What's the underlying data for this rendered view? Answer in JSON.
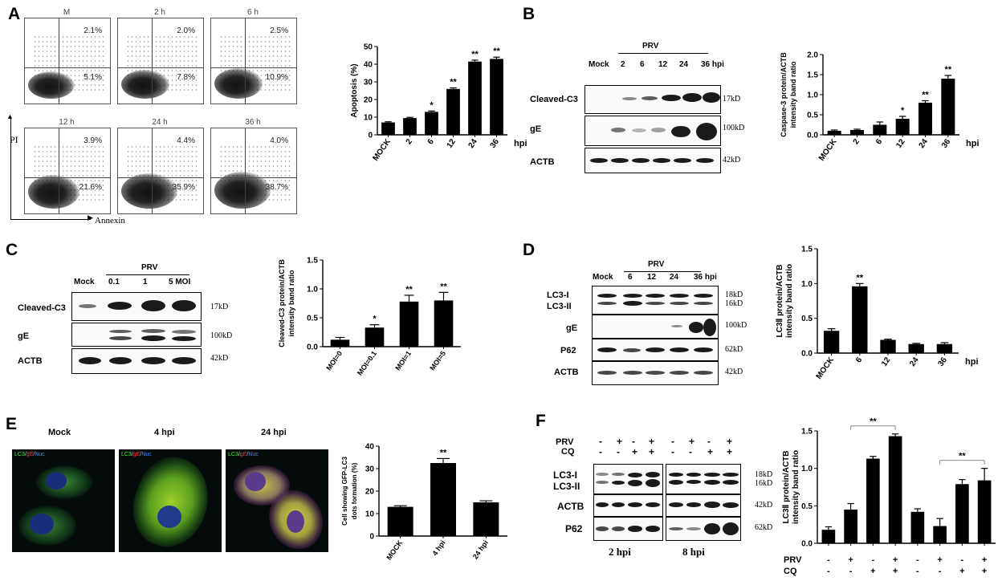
{
  "panels": {
    "A": {
      "letter": "A",
      "facs_plots": [
        {
          "title": "M",
          "upper_right": "2.1%",
          "lower_right": "5.1%"
        },
        {
          "title": "2 h",
          "upper_right": "2.0%",
          "lower_right": "7.8%"
        },
        {
          "title": "6 h",
          "upper_right": "2.5%",
          "lower_right": "10.9%"
        },
        {
          "title": "12 h",
          "upper_right": "3.9%",
          "lower_right": "21.6%"
        },
        {
          "title": "24 h",
          "upper_right": "4.4%",
          "lower_right": "35.9%"
        },
        {
          "title": "36 h",
          "upper_right": "4.0%",
          "lower_right": "38.7%"
        }
      ],
      "y_axis_label": "PI",
      "x_axis_label": "Annexin"
    },
    "B": {
      "letter": "B",
      "blot_header": "PRV",
      "lanes": [
        "Mock",
        "2",
        "6",
        "12",
        "24",
        "36 hpi"
      ],
      "rows": [
        "Cleaved-C3",
        "gE",
        "ACTB"
      ],
      "sizes": [
        "17kD",
        "100kD",
        "42kD"
      ]
    },
    "C": {
      "letter": "C",
      "blot_header": "PRV",
      "lanes": [
        "Mock",
        "0.1",
        "1",
        "5 MOI"
      ],
      "rows": [
        "Cleaved-C3",
        "gE",
        "ACTB"
      ],
      "sizes": [
        "17kD",
        "100kD",
        "42kD"
      ]
    },
    "D": {
      "letter": "D",
      "blot_header": "PRV",
      "lanes": [
        "Mock",
        "6",
        "12",
        "24",
        "36 hpi"
      ],
      "rows": [
        "LC3-I",
        "LC3-II",
        "gE",
        "P62",
        "ACTB"
      ],
      "sizes": [
        "18kD",
        "16kD",
        "100kD",
        "62kD",
        "42kD"
      ]
    },
    "E": {
      "letter": "E",
      "images": [
        "Mock",
        "4 hpi",
        "24 hpi"
      ],
      "legend": {
        "lc3": "LC3",
        "ge": "gE",
        "nuc": "Nuc"
      }
    },
    "F": {
      "letter": "F",
      "prv_label": "PRV",
      "cq_label": "CQ",
      "prv_signs": [
        "-",
        "+",
        "-",
        "+",
        "-",
        "+",
        "-",
        "+"
      ],
      "cq_signs": [
        "-",
        "-",
        "+",
        "+",
        "-",
        "-",
        "+",
        "+"
      ],
      "rows": [
        "LC3-I",
        "LC3-II",
        "ACTB",
        "P62"
      ],
      "sizes": [
        "18kD",
        "16kD",
        "42kD",
        "62kD"
      ],
      "time_labels": [
        "2 hpi",
        "8 hpi"
      ]
    }
  },
  "chart_data": [
    {
      "id": "A",
      "type": "bar",
      "categories": [
        "MOCK",
        "2",
        "6",
        "12",
        "24",
        "36"
      ],
      "values": [
        7,
        9.5,
        13,
        26,
        41.5,
        43
      ],
      "errors": [
        0.4,
        0.4,
        0.5,
        0.6,
        0.8,
        1.0
      ],
      "stars": [
        "",
        "",
        "*",
        "**",
        "**",
        "**"
      ],
      "ylabel": "Apoptosis (%)",
      "xunit": "hpi",
      "ylim": [
        0,
        50
      ],
      "yticks": [
        0,
        10,
        20,
        30,
        40,
        50
      ]
    },
    {
      "id": "B",
      "type": "bar",
      "categories": [
        "MOCK",
        "2",
        "6",
        "12",
        "24",
        "36"
      ],
      "values": [
        0.1,
        0.12,
        0.25,
        0.4,
        0.8,
        1.4
      ],
      "errors": [
        0.02,
        0.02,
        0.07,
        0.06,
        0.05,
        0.08
      ],
      "stars": [
        "",
        "",
        "",
        "*",
        "**",
        "**"
      ],
      "ylabel": "Caspase-3 protein/ACTB intensity band ratio",
      "xunit": "hpi",
      "ylim": [
        0,
        2.0
      ],
      "yticks": [
        0.0,
        0.5,
        1.0,
        1.5,
        2.0
      ]
    },
    {
      "id": "C",
      "type": "bar",
      "categories": [
        "MOI=0",
        "MOI=0.1",
        "MOI=1",
        "MOI=5"
      ],
      "values": [
        0.12,
        0.33,
        0.78,
        0.8
      ],
      "errors": [
        0.04,
        0.05,
        0.11,
        0.14
      ],
      "stars": [
        "",
        "*",
        "**",
        "**"
      ],
      "ylabel": "Cleaved-C3 protein/ACTB intensity band ratio",
      "xunit": "",
      "ylim": [
        0,
        1.5
      ],
      "yticks": [
        0.0,
        0.5,
        1.0,
        1.5
      ]
    },
    {
      "id": "D",
      "type": "bar",
      "categories": [
        "MOCK",
        "6",
        "12",
        "24",
        "36"
      ],
      "values": [
        0.32,
        0.96,
        0.19,
        0.13,
        0.13
      ],
      "errors": [
        0.03,
        0.04,
        0.01,
        0.01,
        0.02
      ],
      "stars": [
        "",
        "**",
        "",
        "",
        ""
      ],
      "ylabel": "LC3Ⅱ protein/ACTB intensity band ratio",
      "xunit": "hpi",
      "ylim": [
        0,
        1.5
      ],
      "yticks": [
        0.0,
        0.5,
        1.0,
        1.5
      ]
    },
    {
      "id": "E",
      "type": "bar",
      "categories": [
        "MOCK",
        "4 hpi",
        "24 hpi"
      ],
      "values": [
        13,
        32.5,
        15
      ],
      "errors": [
        0.5,
        2,
        0.7
      ],
      "stars": [
        "",
        "**",
        ""
      ],
      "ylabel": "Cell showing GFP-LC3 dots formation (%)",
      "xunit": "",
      "ylim": [
        0,
        40
      ],
      "yticks": [
        0,
        10,
        20,
        30,
        40
      ]
    },
    {
      "id": "F",
      "type": "bar",
      "categories": [
        "1",
        "2",
        "3",
        "4",
        "5",
        "6",
        "7",
        "8"
      ],
      "values": [
        0.18,
        0.45,
        1.13,
        1.43,
        0.42,
        0.23,
        0.79,
        0.84
      ],
      "errors": [
        0.04,
        0.08,
        0.03,
        0.03,
        0.04,
        0.1,
        0.06,
        0.16
      ],
      "stars": [],
      "brackets": [
        {
          "from": 1,
          "to": 3,
          "label": "**"
        },
        {
          "from": 5,
          "to": 7,
          "label": "**"
        }
      ],
      "ylabel": "LC3Ⅱ protein/ACTB intensity band ratio",
      "xunit": "",
      "ylim": [
        0,
        1.5
      ],
      "yticks": [
        0.0,
        0.5,
        1.0,
        1.5
      ],
      "prv_row": [
        "-",
        "+",
        "-",
        "+",
        "-",
        "+",
        "-",
        "+"
      ],
      "cq_row": [
        "-",
        "-",
        "+",
        "+",
        "-",
        "-",
        "+",
        "+"
      ],
      "prv_label": "PRV",
      "cq_label": "CQ"
    }
  ]
}
